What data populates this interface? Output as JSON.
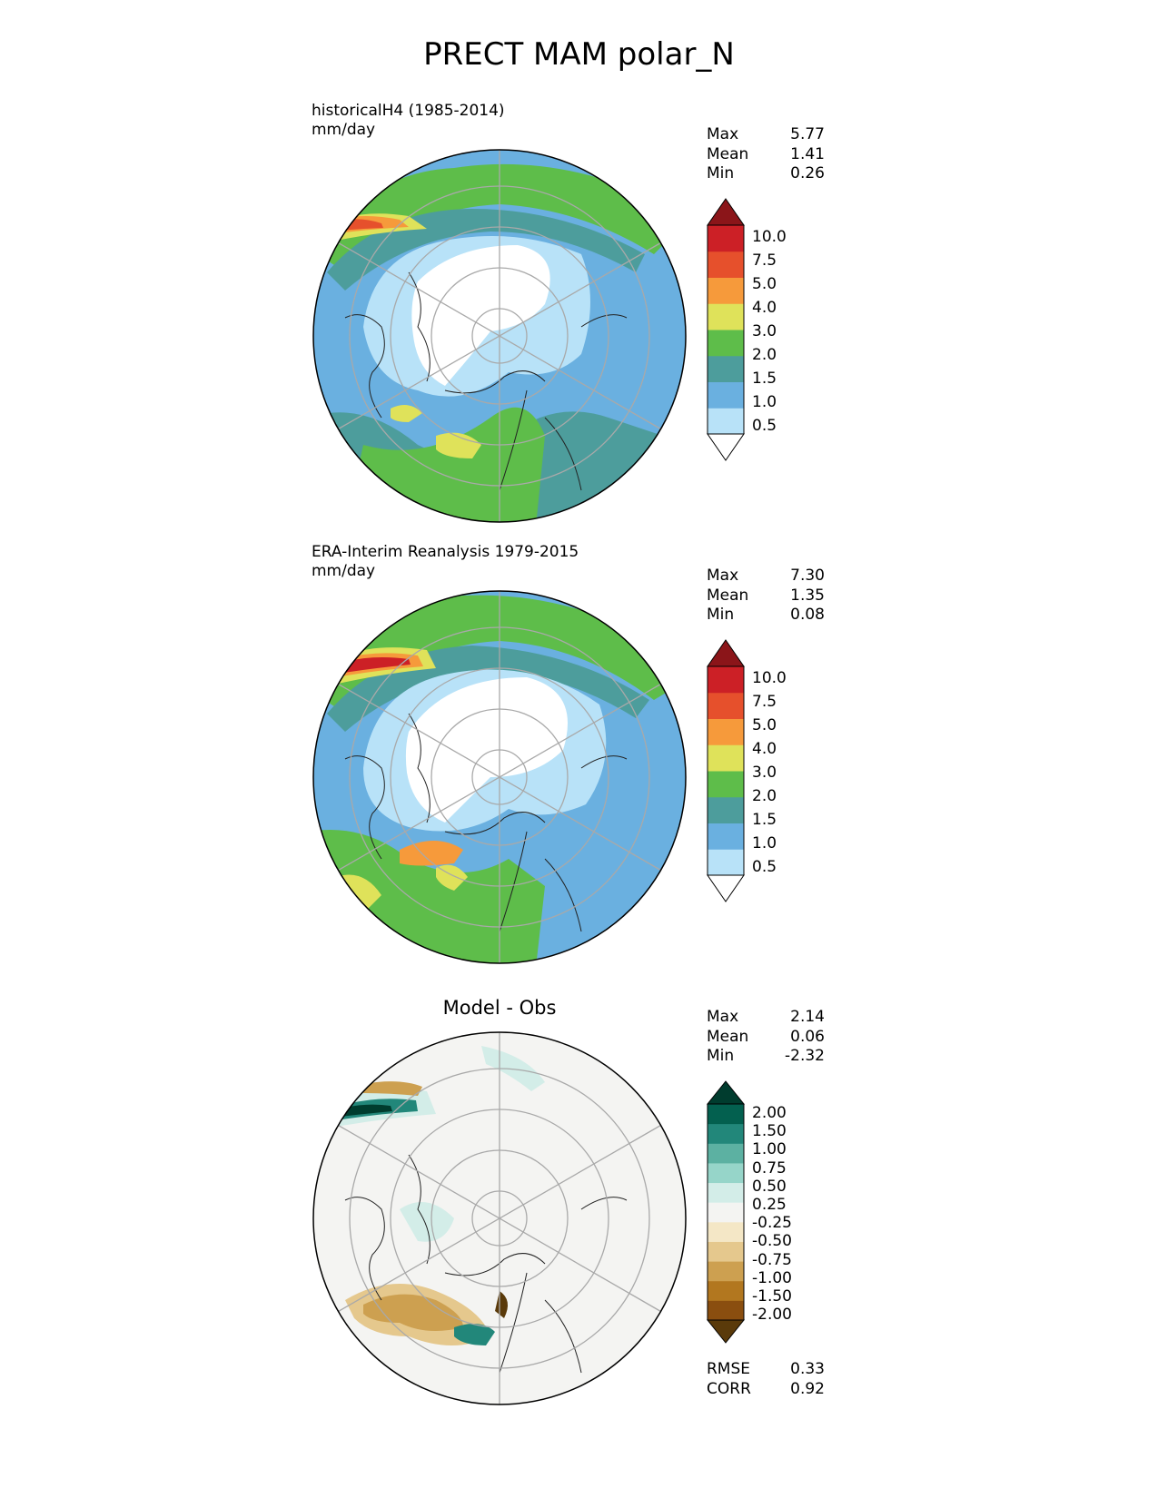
{
  "figure": {
    "title": "PRECT MAM polar_N"
  },
  "colors": {
    "precip_levels": [
      "#ffffff",
      "#b8e2f8",
      "#6ab0e0",
      "#4d9d9c",
      "#5ebd4a",
      "#dfe25a",
      "#f69a3b",
      "#e6502c",
      "#cc2026",
      "#8b1519"
    ],
    "diff_levels": [
      "#5a3a0a",
      "#8a4e0f",
      "#b2771f",
      "#cda050",
      "#e5c88d",
      "#f4e7c6",
      "#f4f4f2",
      "#d3ede8",
      "#96d5c9",
      "#5cb1a2",
      "#22877a",
      "#03604f",
      "#003c2e"
    ]
  },
  "panels": [
    {
      "title_line1": "historicalH4 (1985-2014)",
      "title_line2": "mm/day",
      "stats": [
        {
          "label": "Max",
          "value": "5.77"
        },
        {
          "label": "Mean",
          "value": "1.41"
        },
        {
          "label": "Min",
          "value": "0.26"
        }
      ],
      "colorbar_ticks": [
        "10.0",
        "7.5",
        "5.0",
        "4.0",
        "3.0",
        "2.0",
        "1.5",
        "1.0",
        "0.5"
      ]
    },
    {
      "title_line1": "ERA-Interim Reanalysis 1979-2015",
      "title_line2": "mm/day",
      "stats": [
        {
          "label": "Max",
          "value": "7.30"
        },
        {
          "label": "Mean",
          "value": "1.35"
        },
        {
          "label": "Min",
          "value": "0.08"
        }
      ],
      "colorbar_ticks": [
        "10.0",
        "7.5",
        "5.0",
        "4.0",
        "3.0",
        "2.0",
        "1.5",
        "1.0",
        "0.5"
      ]
    },
    {
      "title_line1": "Model - Obs",
      "stats": [
        {
          "label": "Max",
          "value": "2.14"
        },
        {
          "label": "Mean",
          "value": "0.06"
        },
        {
          "label": "Min",
          "value": "-2.32"
        }
      ],
      "colorbar_ticks": [
        "2.00",
        "1.50",
        "1.00",
        "0.75",
        "0.50",
        "0.25",
        "-0.25",
        "-0.50",
        "-0.75",
        "-1.00",
        "-1.50",
        "-2.00"
      ],
      "extra_stats": [
        {
          "label": "RMSE",
          "value": "0.33"
        },
        {
          "label": "CORR",
          "value": "0.92"
        }
      ]
    }
  ],
  "chart_data": [
    {
      "type": "heatmap",
      "title": "historicalH4 (1985-2014)",
      "units": "mm/day",
      "projection": "north polar stereographic",
      "levels": [
        0.5,
        1.0,
        1.5,
        2.0,
        3.0,
        4.0,
        5.0,
        7.5,
        10.0
      ],
      "stats": {
        "max": 5.77,
        "mean": 1.41,
        "min": 0.26
      }
    },
    {
      "type": "heatmap",
      "title": "ERA-Interim Reanalysis 1979-2015",
      "units": "mm/day",
      "projection": "north polar stereographic",
      "levels": [
        0.5,
        1.0,
        1.5,
        2.0,
        3.0,
        4.0,
        5.0,
        7.5,
        10.0
      ],
      "stats": {
        "max": 7.3,
        "mean": 1.35,
        "min": 0.08
      }
    },
    {
      "type": "heatmap",
      "title": "Model - Obs",
      "projection": "north polar stereographic",
      "levels": [
        -2.0,
        -1.5,
        -1.0,
        -0.75,
        -0.5,
        -0.25,
        0.25,
        0.5,
        0.75,
        1.0,
        1.5,
        2.0
      ],
      "stats": {
        "max": 2.14,
        "mean": 0.06,
        "min": -2.32,
        "rmse": 0.33,
        "corr": 0.92
      }
    }
  ]
}
